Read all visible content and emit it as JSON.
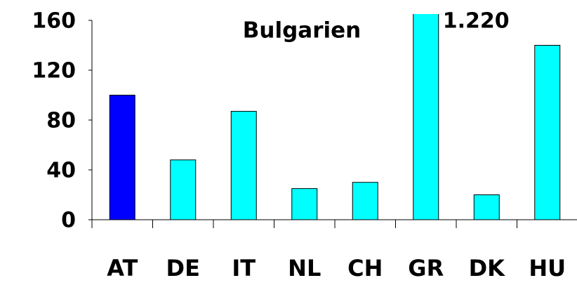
{
  "chart_data": {
    "type": "bar",
    "title": "Bulgarien",
    "categories": [
      "AT",
      "DE",
      "IT",
      "NL",
      "CH",
      "GR",
      "DK",
      "HU"
    ],
    "values": [
      100,
      48,
      87,
      25,
      30,
      1220,
      20,
      140
    ],
    "value_labels": [
      null,
      null,
      null,
      null,
      null,
      "1.220",
      null,
      null
    ],
    "colors": [
      "#0000ff",
      "#00ffff",
      "#00ffff",
      "#00ffff",
      "#00ffff",
      "#00ffff",
      "#00ffff",
      "#00ffff"
    ],
    "ylim": [
      0,
      160
    ],
    "yticks": [
      0,
      40,
      80,
      120,
      160
    ],
    "grid": false
  }
}
